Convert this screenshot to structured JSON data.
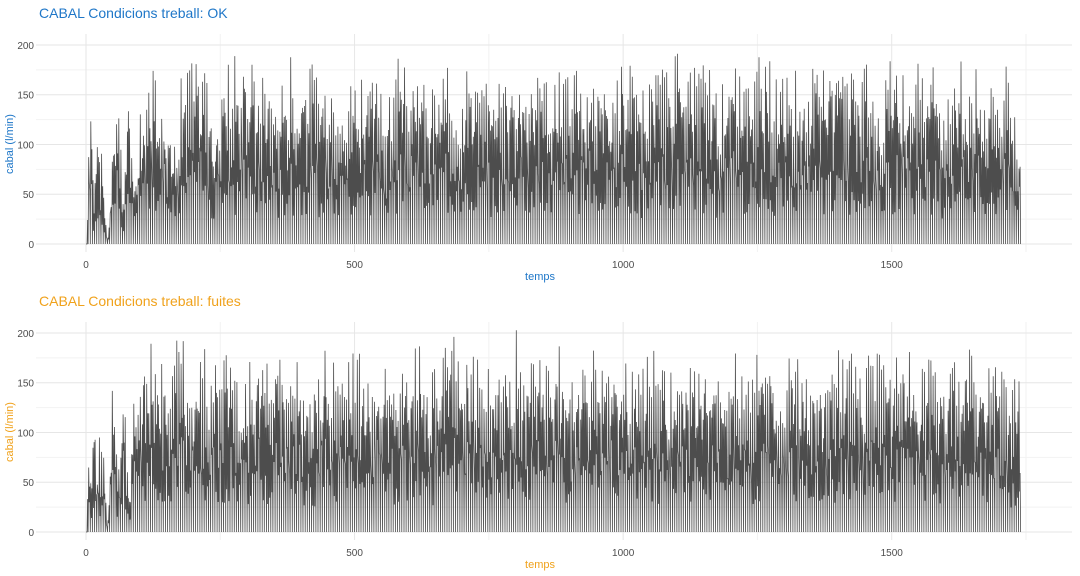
{
  "chart_data": [
    {
      "type": "line",
      "title": "CABAL Condicions treball: OK",
      "title_color": "#1f77c8",
      "xlabel": "temps",
      "ylabel": "cabal (l/min)",
      "label_color": "#1f77c8",
      "line_color": "#4d4d4d",
      "xlim": [
        0,
        1750
      ],
      "ylim": [
        0,
        205
      ],
      "x_ticks": [
        0,
        500,
        1000,
        1500
      ],
      "y_ticks": [
        0,
        50,
        100,
        150,
        200
      ],
      "grid": true,
      "series": [
        {
          "x": [
            0,
            5,
            10,
            15,
            20,
            30,
            40,
            50,
            60,
            70,
            80,
            90,
            100,
            120,
            140,
            160,
            180,
            200,
            220,
            230,
            240,
            260,
            280,
            300,
            320,
            340,
            360,
            380,
            400,
            420,
            440,
            460,
            480,
            500,
            520,
            540,
            560,
            580,
            600,
            620,
            640,
            660,
            680,
            700,
            720,
            740,
            760,
            780,
            800,
            820,
            840,
            860,
            880,
            900,
            920,
            940,
            960,
            980,
            1000,
            1020,
            1040,
            1060,
            1080,
            1100,
            1120,
            1140,
            1160,
            1180,
            1200,
            1220,
            1240,
            1260,
            1280,
            1300,
            1320,
            1340,
            1360,
            1380,
            1400,
            1420,
            1440,
            1460,
            1480,
            1500,
            1520,
            1540,
            1560,
            1580,
            1600,
            1620,
            1640,
            1660,
            1680,
            1700,
            1720,
            1740
          ],
          "y": [
            0,
            120,
            185,
            40,
            150,
            90,
            0,
            110,
            190,
            30,
            185,
            60,
            140,
            170,
            195,
            100,
            180,
            190,
            200,
            150,
            120,
            195,
            190,
            200,
            175,
            180,
            160,
            195,
            175,
            185,
            170,
            195,
            150,
            185,
            160,
            195,
            140,
            190,
            175,
            190,
            150,
            185,
            180,
            170,
            195,
            160,
            185,
            175,
            200,
            180,
            190,
            160,
            195,
            185,
            170,
            190,
            180,
            165,
            195,
            185,
            160,
            190,
            175,
            195,
            170,
            185,
            190,
            160,
            195,
            180,
            175,
            200,
            185,
            170,
            190,
            160,
            195,
            180,
            200,
            190,
            175,
            185,
            160,
            190,
            180,
            195,
            170,
            185,
            160,
            200,
            175,
            190,
            160,
            180,
            185,
            120
          ]
        }
      ]
    },
    {
      "type": "line",
      "title": "CABAL Condicions treball: fuites",
      "title_color": "#f0a21c",
      "xlabel": "temps",
      "ylabel": "cabal (l/min)",
      "label_color": "#f0a21c",
      "line_color": "#4d4d4d",
      "xlim": [
        0,
        1750
      ],
      "ylim": [
        0,
        205
      ],
      "x_ticks": [
        0,
        500,
        1000,
        1500
      ],
      "y_ticks": [
        0,
        50,
        100,
        150,
        200
      ],
      "grid": true,
      "series": [
        {
          "x": [
            0,
            5,
            10,
            15,
            20,
            30,
            40,
            50,
            60,
            70,
            80,
            90,
            100,
            120,
            140,
            160,
            180,
            200,
            220,
            240,
            260,
            280,
            300,
            320,
            340,
            360,
            380,
            400,
            420,
            440,
            460,
            480,
            500,
            520,
            540,
            560,
            580,
            600,
            620,
            640,
            660,
            680,
            700,
            720,
            740,
            760,
            780,
            800,
            820,
            840,
            860,
            880,
            900,
            920,
            940,
            960,
            980,
            1000,
            1020,
            1040,
            1060,
            1080,
            1100,
            1120,
            1140,
            1160,
            1180,
            1200,
            1220,
            1240,
            1260,
            1280,
            1300,
            1320,
            1340,
            1360,
            1380,
            1400,
            1420,
            1440,
            1460,
            1480,
            1500,
            1520,
            1540,
            1560,
            1580,
            1600,
            1620,
            1640,
            1660,
            1680,
            1700,
            1720,
            1740
          ],
          "y": [
            0,
            108,
            40,
            165,
            80,
            120,
            0,
            175,
            60,
            190,
            30,
            150,
            180,
            195,
            170,
            190,
            200,
            160,
            185,
            175,
            195,
            160,
            180,
            190,
            170,
            195,
            180,
            175,
            160,
            190,
            185,
            170,
            195,
            160,
            190,
            175,
            185,
            170,
            200,
            160,
            180,
            205,
            175,
            190,
            170,
            185,
            165,
            205,
            180,
            190,
            175,
            200,
            160,
            185,
            195,
            175,
            190,
            165,
            185,
            175,
            195,
            160,
            190,
            180,
            170,
            195,
            185,
            175,
            190,
            160,
            200,
            180,
            170,
            190,
            175,
            185,
            160,
            195,
            185,
            170,
            190,
            180,
            165,
            195,
            180,
            175,
            190,
            160,
            185,
            200,
            170,
            185,
            175,
            150,
            165
          ]
        }
      ]
    }
  ]
}
